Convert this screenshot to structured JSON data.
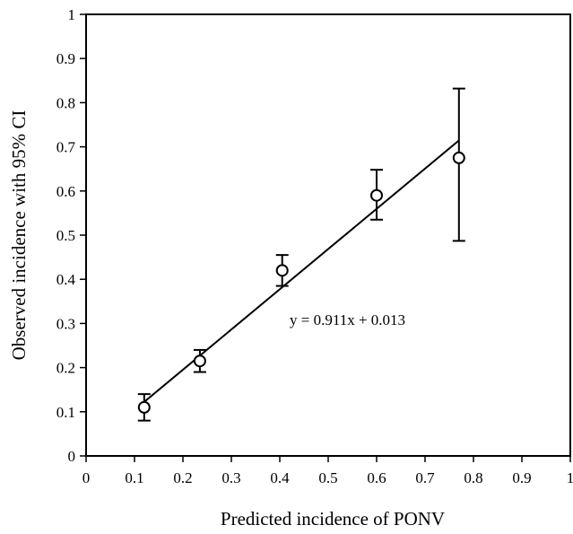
{
  "chart_data": {
    "type": "scatter",
    "xlabel": "Predicted incidence of PONV",
    "ylabel": "Observed incidence with 95% CI",
    "xlim": [
      0,
      1
    ],
    "ylim": [
      0,
      1
    ],
    "x_ticks": [
      "0",
      "0.1",
      "0.2",
      "0.3",
      "0.4",
      "0.5",
      "0.6",
      "0.7",
      "0.8",
      "0.9",
      "1"
    ],
    "y_ticks": [
      "0",
      "0.1",
      "0.2",
      "0.3",
      "0.4",
      "0.5",
      "0.6",
      "0.7",
      "0.8",
      "0.9",
      "1"
    ],
    "grid": false,
    "series": [
      {
        "points": [
          {
            "x": 0.12,
            "y": 0.11,
            "ci_low": 0.08,
            "ci_high": 0.14
          },
          {
            "x": 0.235,
            "y": 0.215,
            "ci_low": 0.19,
            "ci_high": 0.24
          },
          {
            "x": 0.405,
            "y": 0.42,
            "ci_low": 0.385,
            "ci_high": 0.455
          },
          {
            "x": 0.6,
            "y": 0.59,
            "ci_low": 0.535,
            "ci_high": 0.648
          },
          {
            "x": 0.77,
            "y": 0.675,
            "ci_low": 0.487,
            "ci_high": 0.832
          }
        ]
      }
    ],
    "trendline": {
      "slope": 0.911,
      "intercept": 0.013,
      "x_range": [
        0.12,
        0.77
      ],
      "label": "y = 0.911x + 0.013"
    }
  }
}
